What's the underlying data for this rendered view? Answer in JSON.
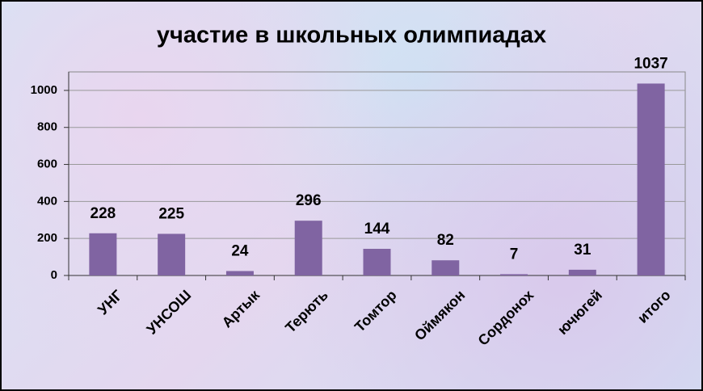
{
  "chart_data": {
    "type": "bar",
    "title": "участие в школьных олимпиадах",
    "categories": [
      "УНГ",
      "УНСОШ",
      "Артык",
      "Терють",
      "Томтор",
      "Оймякон",
      "Сордонох",
      "ючюгей",
      "итого"
    ],
    "values": [
      228,
      225,
      24,
      296,
      144,
      82,
      7,
      31,
      1037
    ],
    "color": "#8064a2",
    "ylim": [
      0,
      1100
    ],
    "yticks": [
      0,
      200,
      400,
      600,
      800,
      1000
    ],
    "grid": true
  }
}
